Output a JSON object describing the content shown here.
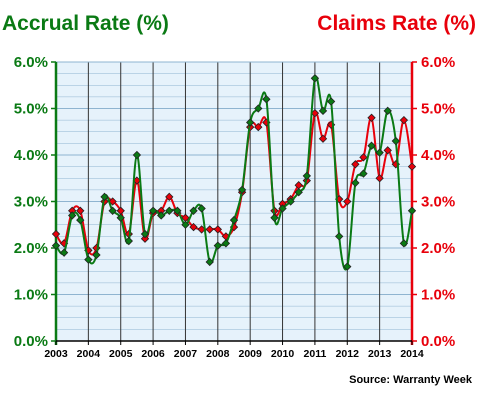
{
  "chart_data": {
    "type": "line",
    "left_axis_title": "Accrual Rate (%)",
    "right_axis_title": "Claims Rate (%)",
    "source": "Source: Warranty Week",
    "colors": {
      "accrual": "#0a7a14",
      "claims": "#e8000b",
      "plot_bg": "#e6f2fb",
      "grid": "#8fb4d0"
    },
    "ylim": [
      0,
      6
    ],
    "y_ticks": [
      "0.0%",
      "1.0%",
      "2.0%",
      "3.0%",
      "4.0%",
      "5.0%",
      "6.0%"
    ],
    "x_ticks": [
      "2003",
      "2004",
      "2005",
      "2006",
      "2007",
      "2008",
      "2009",
      "2010",
      "2011",
      "2012",
      "2013",
      "2014"
    ],
    "grid": true,
    "series": [
      {
        "key": "accrual",
        "x": [
          2003.0,
          2003.25,
          2003.5,
          2003.75,
          2004.0,
          2004.25,
          2004.5,
          2004.75,
          2005.0,
          2005.25,
          2005.5,
          2005.75,
          2006.0,
          2006.25,
          2006.5,
          2006.75,
          2007.0,
          2007.25,
          2007.5,
          2007.75,
          2008.0,
          2008.25,
          2008.5,
          2008.75,
          2009.0,
          2009.25,
          2009.5,
          2009.75,
          2010.0,
          2010.25,
          2010.5,
          2010.75,
          2011.0,
          2011.25,
          2011.5,
          2011.75,
          2012.0,
          2012.25,
          2012.5,
          2012.75,
          2013.0,
          2013.25,
          2013.5,
          2013.75,
          2014.0
        ],
        "values": [
          2.05,
          1.9,
          2.7,
          2.6,
          1.75,
          1.85,
          3.1,
          2.8,
          2.65,
          2.15,
          4.0,
          2.3,
          2.8,
          2.7,
          2.8,
          2.8,
          2.5,
          2.8,
          2.85,
          1.7,
          2.05,
          2.1,
          2.6,
          3.25,
          4.7,
          5.0,
          5.2,
          2.65,
          2.85,
          3.0,
          3.2,
          3.55,
          5.65,
          4.95,
          5.15,
          2.25,
          1.6,
          3.4,
          3.6,
          4.2,
          4.05,
          4.95,
          4.3,
          2.1,
          2.8
        ]
      },
      {
        "key": "claims",
        "x": [
          2003.0,
          2003.25,
          2003.5,
          2003.75,
          2004.0,
          2004.25,
          2004.5,
          2004.75,
          2005.0,
          2005.25,
          2005.5,
          2005.75,
          2006.0,
          2006.25,
          2006.5,
          2006.75,
          2007.0,
          2007.25,
          2007.5,
          2007.75,
          2008.0,
          2008.25,
          2008.5,
          2008.75,
          2009.0,
          2009.25,
          2009.5,
          2009.75,
          2010.0,
          2010.25,
          2010.5,
          2010.75,
          2011.0,
          2011.25,
          2011.5,
          2011.75,
          2012.0,
          2012.25,
          2012.5,
          2012.75,
          2013.0,
          2013.25,
          2013.5,
          2013.75,
          2014.0
        ],
        "values": [
          2.3,
          2.1,
          2.8,
          2.8,
          1.95,
          2.0,
          3.0,
          3.0,
          2.8,
          2.3,
          3.45,
          2.2,
          2.75,
          2.8,
          3.1,
          2.75,
          2.65,
          2.45,
          2.4,
          2.4,
          2.4,
          2.25,
          2.45,
          3.2,
          4.6,
          4.6,
          4.7,
          2.8,
          2.95,
          3.05,
          3.35,
          3.45,
          4.9,
          4.35,
          4.65,
          3.05,
          3.0,
          3.8,
          3.95,
          4.8,
          3.5,
          4.1,
          3.8,
          4.75,
          3.75
        ]
      }
    ]
  }
}
